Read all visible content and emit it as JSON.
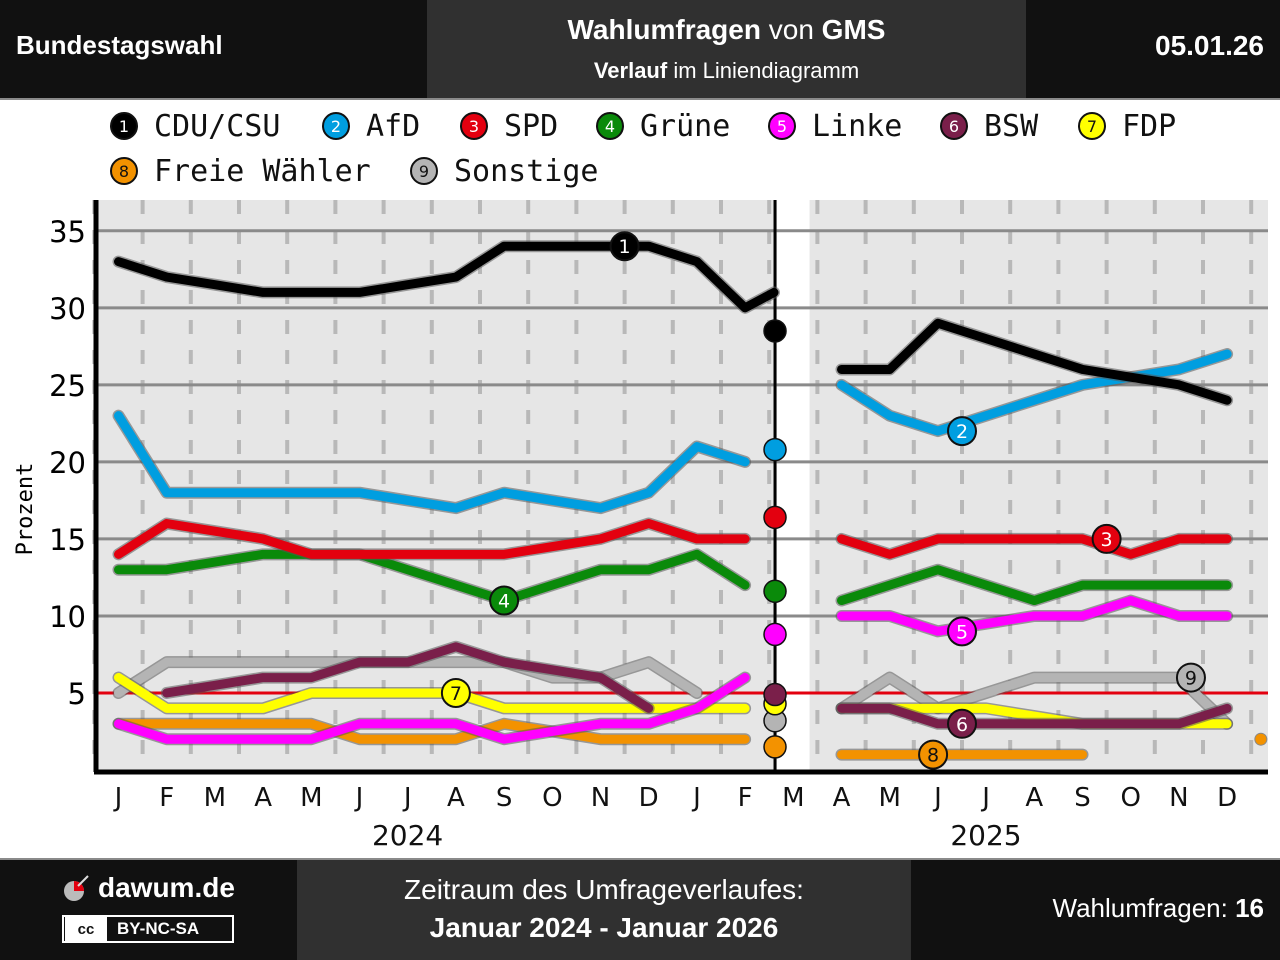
{
  "header": {
    "left": "Bundestagswahl",
    "title_bold1": "Wahlumfragen",
    "title_mid": " von ",
    "title_bold2": "GMS",
    "sub_bold": "Verlauf",
    "sub_rest": " im Liniendiagramm",
    "date": "05.01.26"
  },
  "footer": {
    "site": "dawum.de",
    "license": "BY-NC-SA",
    "cc": "cc",
    "range_label": "Zeitraum des Umfrageverlaufes:",
    "range_value": "Januar 2024 - Januar 2026",
    "count_label": "Wahlumfragen: ",
    "count_value": "16"
  },
  "chart_data": {
    "type": "line",
    "ylabel": "Prozent",
    "ylim": [
      0,
      37
    ],
    "yticks": [
      5,
      10,
      15,
      20,
      25,
      30,
      35
    ],
    "threshold": 5,
    "months": [
      "J",
      "F",
      "M",
      "A",
      "M",
      "J",
      "J",
      "A",
      "S",
      "O",
      "N",
      "D",
      "J",
      "F",
      "M",
      "A",
      "M",
      "J",
      "J",
      "A",
      "S",
      "O",
      "N",
      "D"
    ],
    "years": [
      {
        "label": "2024",
        "month_index": 5.5
      },
      {
        "label": "2025",
        "month_index": 17.5
      }
    ],
    "election_month": 13.6,
    "colors": {
      "cdu": "#000000",
      "afd": "#009ee0",
      "spd": "#e3000f",
      "gruene": "#0a8a0a",
      "linke": "#ff00ff",
      "bsw": "#7a1f4a",
      "fdp": "#ffff00",
      "fw": "#f39200",
      "sonst": "#b4b4b4"
    },
    "series": [
      {
        "key": "sonst",
        "name": "Sonstige",
        "number": "9",
        "label_at": [
          22.25,
          6
        ],
        "segments": [
          [
            [
              0,
              5
            ],
            [
              1,
              7
            ],
            [
              2,
              7
            ],
            [
              3,
              7
            ],
            [
              4,
              7
            ],
            [
              5,
              7
            ],
            [
              6,
              7
            ],
            [
              7,
              7
            ],
            [
              8,
              7
            ],
            [
              9,
              6
            ],
            [
              10,
              6
            ],
            [
              11,
              7
            ],
            [
              12,
              5
            ]
          ],
          [
            [
              15,
              4
            ],
            [
              16,
              6
            ],
            [
              17,
              4
            ],
            [
              18,
              5
            ],
            [
              19,
              6
            ],
            [
              20,
              6
            ],
            [
              21,
              6
            ],
            [
              22,
              6
            ],
            [
              23,
              3
            ]
          ]
        ],
        "election": 3.2
      },
      {
        "key": "fw",
        "name": "Freie Wähler",
        "number": "8",
        "label_at": [
          16.9,
          1
        ],
        "segments": [
          [
            [
              0,
              3
            ],
            [
              1,
              3
            ],
            [
              2,
              3
            ],
            [
              3,
              3
            ],
            [
              4,
              3
            ],
            [
              5,
              2
            ],
            [
              6,
              2
            ],
            [
              7,
              2
            ],
            [
              8,
              3
            ],
            [
              9,
              2.5
            ],
            [
              10,
              2
            ],
            [
              11,
              2
            ],
            [
              12,
              2
            ],
            [
              13,
              2
            ]
          ],
          [
            [
              15,
              1
            ],
            [
              16,
              1
            ],
            [
              17,
              1
            ],
            [
              18,
              1
            ],
            [
              19,
              1
            ],
            [
              20,
              1
            ]
          ]
        ],
        "election": 1.5,
        "end_dot": [
          23.7,
          2
        ]
      },
      {
        "key": "fdp",
        "name": "FDP",
        "number": "7",
        "label_at": [
          7.0,
          5
        ],
        "segments": [
          [
            [
              0,
              6
            ],
            [
              1,
              4
            ],
            [
              2,
              4
            ],
            [
              3,
              4
            ],
            [
              4,
              5
            ],
            [
              5,
              5
            ],
            [
              6,
              5
            ],
            [
              7,
              5
            ],
            [
              8,
              4
            ],
            [
              9,
              4
            ],
            [
              10,
              4
            ],
            [
              11,
              4
            ],
            [
              12,
              4
            ],
            [
              13,
              4
            ]
          ],
          [
            [
              15,
              4
            ],
            [
              16,
              4
            ],
            [
              17,
              4
            ],
            [
              18,
              4
            ],
            [
              19,
              3.5
            ],
            [
              20,
              3
            ],
            [
              21,
              3
            ],
            [
              22,
              3
            ],
            [
              23,
              3
            ]
          ]
        ],
        "election": 4.3
      },
      {
        "key": "bsw",
        "name": "BSW",
        "number": "6",
        "label_at": [
          17.5,
          3
        ],
        "segments": [
          [
            [
              1,
              5
            ],
            [
              2,
              5.5
            ],
            [
              3,
              6
            ],
            [
              4,
              6
            ],
            [
              5,
              7
            ],
            [
              6,
              7
            ],
            [
              7,
              8
            ],
            [
              8,
              7
            ],
            [
              9,
              6.5
            ],
            [
              10,
              6
            ],
            [
              11,
              4
            ]
          ],
          [
            [
              15,
              4
            ],
            [
              16,
              4
            ],
            [
              17,
              3
            ],
            [
              18,
              3
            ],
            [
              19,
              3
            ],
            [
              20,
              3
            ],
            [
              21,
              3
            ],
            [
              22,
              3
            ],
            [
              23,
              4
            ]
          ]
        ],
        "election": 4.9
      },
      {
        "key": "linke",
        "name": "Linke",
        "number": "5",
        "label_at": [
          17.5,
          9
        ],
        "segments": [
          [
            [
              0,
              3
            ],
            [
              1,
              2
            ],
            [
              2,
              2
            ],
            [
              3,
              2
            ],
            [
              4,
              2
            ],
            [
              5,
              3
            ],
            [
              6,
              3
            ],
            [
              7,
              3
            ],
            [
              8,
              2
            ],
            [
              9,
              2.5
            ],
            [
              10,
              3
            ],
            [
              11,
              3
            ],
            [
              12,
              4
            ],
            [
              13,
              6
            ]
          ],
          [
            [
              15,
              10
            ],
            [
              16,
              10
            ],
            [
              17,
              9
            ],
            [
              18,
              9.5
            ],
            [
              19,
              10
            ],
            [
              20,
              10
            ],
            [
              21,
              11
            ],
            [
              22,
              10
            ],
            [
              23,
              10
            ]
          ]
        ],
        "election": 8.8
      },
      {
        "key": "gruene",
        "name": "Grüne",
        "number": "4",
        "label_at": [
          8.0,
          11
        ],
        "segments": [
          [
            [
              0,
              13
            ],
            [
              1,
              13
            ],
            [
              2,
              13.5
            ],
            [
              3,
              14
            ],
            [
              4,
              14
            ],
            [
              5,
              14
            ],
            [
              6,
              13
            ],
            [
              7,
              12
            ],
            [
              8,
              11
            ],
            [
              9,
              12
            ],
            [
              10,
              13
            ],
            [
              11,
              13
            ],
            [
              12,
              14
            ],
            [
              13,
              12
            ]
          ],
          [
            [
              15,
              11
            ],
            [
              16,
              12
            ],
            [
              17,
              13
            ],
            [
              18,
              12
            ],
            [
              19,
              11
            ],
            [
              20,
              12
            ],
            [
              21,
              12
            ],
            [
              22,
              12
            ],
            [
              23,
              12
            ]
          ]
        ],
        "election": 11.6
      },
      {
        "key": "spd",
        "name": "SPD",
        "number": "3",
        "label_at": [
          20.5,
          15
        ],
        "segments": [
          [
            [
              0,
              14
            ],
            [
              1,
              16
            ],
            [
              2,
              15.5
            ],
            [
              3,
              15
            ],
            [
              4,
              14
            ],
            [
              5,
              14
            ],
            [
              6,
              14
            ],
            [
              7,
              14
            ],
            [
              8,
              14
            ],
            [
              9,
              14.5
            ],
            [
              10,
              15
            ],
            [
              11,
              16
            ],
            [
              12,
              15
            ],
            [
              13,
              15
            ]
          ],
          [
            [
              15,
              15
            ],
            [
              16,
              14
            ],
            [
              17,
              15
            ],
            [
              18,
              15
            ],
            [
              19,
              15
            ],
            [
              20,
              15
            ],
            [
              21,
              14
            ],
            [
              22,
              15
            ],
            [
              23,
              15
            ]
          ]
        ],
        "election": 16.4
      },
      {
        "key": "afd",
        "name": "AfD",
        "number": "2",
        "label_at": [
          17.5,
          22
        ],
        "segments": [
          [
            [
              0,
              23
            ],
            [
              1,
              18
            ],
            [
              2,
              18
            ],
            [
              3,
              18
            ],
            [
              4,
              18
            ],
            [
              5,
              18
            ],
            [
              6,
              17.5
            ],
            [
              7,
              17
            ],
            [
              8,
              18
            ],
            [
              9,
              17.5
            ],
            [
              10,
              17
            ],
            [
              11,
              18
            ],
            [
              12,
              21
            ],
            [
              13,
              20
            ]
          ],
          [
            [
              15,
              25
            ],
            [
              16,
              23
            ],
            [
              17,
              22
            ],
            [
              18,
              23
            ],
            [
              19,
              24
            ],
            [
              20,
              25
            ],
            [
              21,
              25.5
            ],
            [
              22,
              26
            ],
            [
              23,
              27
            ]
          ]
        ],
        "election": 20.8
      },
      {
        "key": "cdu",
        "name": "CDU/CSU",
        "number": "1",
        "label_at": [
          10.5,
          34
        ],
        "segments": [
          [
            [
              0,
              33
            ],
            [
              1,
              32
            ],
            [
              2,
              31.5
            ],
            [
              3,
              31
            ],
            [
              4,
              31
            ],
            [
              5,
              31
            ],
            [
              6,
              31.5
            ],
            [
              7,
              32
            ],
            [
              8,
              34
            ],
            [
              9,
              34
            ],
            [
              10,
              34
            ],
            [
              11,
              34
            ],
            [
              12,
              33
            ],
            [
              13,
              30
            ],
            [
              13.6,
              31
            ]
          ],
          [
            [
              15,
              26
            ],
            [
              16,
              26
            ],
            [
              17,
              29
            ],
            [
              18,
              28
            ],
            [
              19,
              27
            ],
            [
              20,
              26
            ],
            [
              21,
              25.5
            ],
            [
              22,
              25
            ],
            [
              23,
              24
            ]
          ]
        ],
        "election": 28.5
      }
    ],
    "legend_order": [
      "cdu",
      "afd",
      "spd",
      "gruene",
      "linke",
      "bsw",
      "fdp",
      "fw",
      "sonst"
    ]
  }
}
